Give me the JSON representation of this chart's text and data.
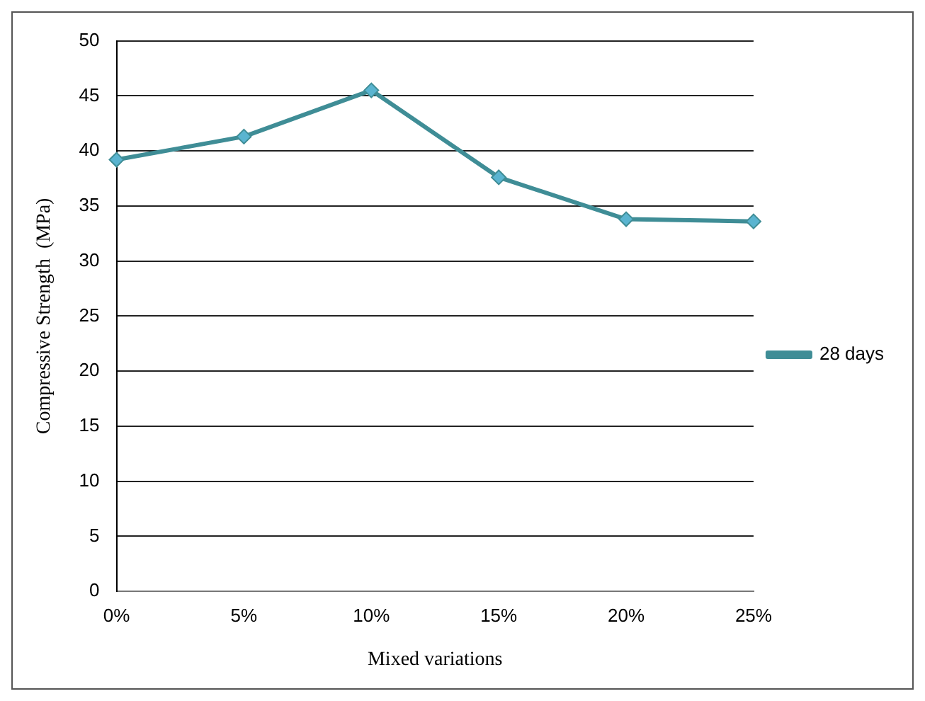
{
  "chart_data": {
    "type": "line",
    "xlabel": "Mixed variations",
    "ylabel": "Compressive Strength  (MPa)",
    "categories": [
      "0%",
      "5%",
      "10%",
      "15%",
      "20%",
      "25%"
    ],
    "series": [
      {
        "name": "28 days",
        "color": "#3f8d96",
        "values": [
          39.2,
          41.3,
          45.5,
          37.6,
          33.8,
          33.6
        ]
      }
    ],
    "ylim": [
      0,
      50
    ],
    "yticks": [
      0,
      5,
      10,
      15,
      20,
      25,
      30,
      35,
      40,
      45,
      50
    ],
    "grid": "y",
    "legend": "right",
    "marker": "diamond",
    "line_style": "solid"
  }
}
